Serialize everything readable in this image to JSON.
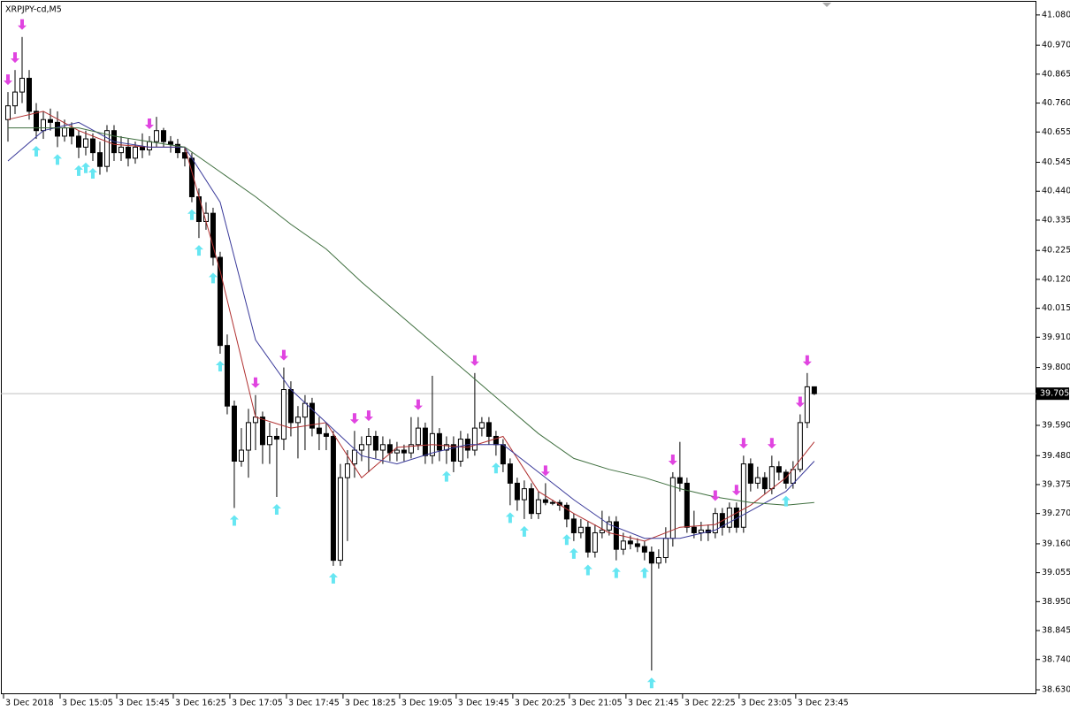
{
  "chart_data": {
    "type": "candlestick",
    "title": "XRPJPY-cd,M5",
    "open": [
      40.7,
      40.75,
      40.8,
      40.85,
      40.73,
      40.66,
      40.7,
      40.69,
      40.64,
      40.67,
      40.64,
      40.6,
      40.63,
      40.58,
      40.53,
      40.66,
      40.58,
      40.6,
      40.56,
      40.6,
      40.59,
      40.62,
      40.66,
      40.62,
      40.61,
      40.58,
      40.56,
      40.42,
      40.33,
      40.36,
      40.2,
      39.88,
      39.66,
      39.46,
      39.5,
      39.6,
      39.62,
      39.52,
      39.55,
      39.54,
      39.72,
      39.6,
      39.62,
      39.67,
      39.58,
      39.56,
      39.55,
      39.1,
      39.4,
      39.45,
      39.5,
      39.52,
      39.55,
      39.5,
      39.52,
      39.49,
      39.5,
      39.49,
      39.52,
      39.58,
      39.48,
      39.56,
      39.5,
      39.52,
      39.46,
      39.54,
      39.5,
      39.58,
      39.6,
      39.55,
      39.52,
      39.45,
      39.38,
      39.32,
      39.36,
      39.27,
      39.32,
      39.31,
      39.31,
      39.3,
      39.25,
      39.2,
      39.22,
      39.13,
      39.2,
      39.21,
      39.24,
      39.14,
      39.17,
      39.16,
      39.15,
      39.13,
      39.09,
      39.11,
      39.18,
      39.4,
      39.38,
      39.22,
      39.2,
      39.21,
      39.2,
      39.27,
      39.22,
      39.29,
      39.22,
      39.45,
      39.38,
      39.4,
      39.36,
      39.44,
      39.42,
      39.38,
      39.43,
      39.6,
      39.73
    ],
    "high": [
      40.8,
      40.88,
      41.0,
      40.88,
      40.76,
      40.73,
      40.74,
      40.73,
      40.7,
      40.69,
      40.66,
      40.66,
      40.65,
      40.62,
      40.68,
      40.68,
      40.64,
      40.63,
      40.62,
      40.65,
      40.64,
      40.71,
      40.67,
      40.64,
      40.63,
      40.6,
      40.58,
      40.45,
      40.4,
      40.38,
      40.22,
      39.92,
      39.68,
      39.58,
      39.65,
      39.7,
      39.64,
      39.6,
      39.58,
      39.8,
      39.75,
      39.66,
      39.7,
      39.69,
      39.62,
      39.6,
      39.57,
      39.45,
      39.5,
      39.57,
      39.55,
      39.58,
      39.57,
      39.55,
      39.54,
      39.53,
      39.52,
      39.62,
      39.62,
      39.6,
      39.77,
      39.58,
      39.55,
      39.55,
      39.57,
      39.56,
      39.78,
      39.62,
      39.62,
      39.57,
      39.54,
      39.47,
      39.4,
      39.39,
      39.38,
      39.35,
      39.38,
      39.32,
      39.32,
      39.31,
      39.27,
      39.25,
      39.24,
      39.23,
      39.28,
      39.26,
      39.26,
      39.2,
      39.19,
      39.18,
      39.17,
      39.15,
      39.14,
      39.22,
      39.42,
      39.53,
      39.4,
      39.28,
      39.24,
      39.23,
      39.29,
      39.29,
      39.31,
      39.31,
      39.48,
      39.47,
      39.44,
      39.42,
      39.48,
      39.46,
      39.43,
      39.46,
      39.63,
      39.78,
      39.73
    ],
    "low": [
      40.62,
      40.72,
      40.76,
      40.7,
      40.63,
      40.63,
      40.66,
      40.6,
      40.62,
      40.61,
      40.56,
      40.57,
      40.55,
      40.5,
      40.51,
      40.55,
      40.55,
      40.53,
      40.54,
      40.56,
      40.57,
      40.6,
      40.6,
      40.58,
      40.56,
      40.53,
      40.4,
      40.27,
      40.3,
      40.17,
      39.85,
      39.63,
      39.29,
      39.44,
      39.4,
      39.5,
      39.45,
      39.45,
      39.33,
      39.5,
      39.55,
      39.47,
      39.5,
      39.55,
      39.5,
      39.5,
      39.08,
      39.08,
      39.17,
      39.4,
      39.46,
      39.42,
      39.47,
      39.45,
      39.46,
      39.46,
      39.46,
      39.47,
      39.5,
      39.45,
      39.45,
      39.46,
      39.45,
      39.42,
      39.44,
      39.47,
      39.48,
      39.55,
      39.52,
      39.48,
      39.42,
      39.3,
      39.28,
      39.25,
      39.25,
      39.25,
      39.3,
      39.3,
      39.28,
      39.22,
      39.17,
      39.18,
      39.11,
      39.11,
      39.18,
      39.19,
      39.1,
      39.12,
      39.14,
      39.13,
      39.1,
      38.7,
      39.07,
      39.09,
      39.15,
      39.35,
      39.2,
      39.18,
      39.17,
      39.17,
      39.18,
      39.19,
      39.2,
      39.2,
      39.2,
      39.35,
      39.36,
      39.34,
      39.34,
      39.39,
      39.36,
      39.36,
      39.42,
      39.58,
      39.7
    ],
    "close": [
      40.75,
      40.8,
      40.85,
      40.73,
      40.66,
      40.7,
      40.69,
      40.64,
      40.67,
      40.64,
      40.6,
      40.63,
      40.58,
      40.53,
      40.66,
      40.58,
      40.6,
      40.56,
      40.6,
      40.59,
      40.62,
      40.66,
      40.62,
      40.61,
      40.58,
      40.56,
      40.42,
      40.33,
      40.36,
      40.2,
      39.88,
      39.66,
      39.46,
      39.5,
      39.6,
      39.62,
      39.52,
      39.55,
      39.54,
      39.72,
      39.6,
      39.62,
      39.67,
      39.58,
      39.56,
      39.55,
      39.1,
      39.4,
      39.45,
      39.5,
      39.52,
      39.55,
      39.5,
      39.52,
      39.49,
      39.5,
      39.49,
      39.52,
      39.58,
      39.48,
      39.56,
      39.5,
      39.52,
      39.46,
      39.54,
      39.5,
      39.58,
      39.6,
      39.55,
      39.52,
      39.45,
      39.38,
      39.32,
      39.36,
      39.27,
      39.32,
      39.31,
      39.31,
      39.3,
      39.25,
      39.2,
      39.22,
      39.13,
      39.2,
      39.21,
      39.24,
      39.14,
      39.17,
      39.16,
      39.15,
      39.13,
      39.09,
      39.11,
      39.18,
      39.4,
      39.38,
      39.22,
      39.2,
      39.21,
      39.2,
      39.27,
      39.22,
      39.29,
      39.22,
      39.45,
      39.38,
      39.4,
      39.36,
      39.44,
      39.42,
      39.38,
      39.43,
      39.6,
      39.73,
      39.705
    ],
    "ma_x": [
      0,
      5,
      10,
      15,
      20,
      25,
      30,
      35,
      40,
      45,
      50,
      55,
      60,
      65,
      70,
      75,
      80,
      85,
      90,
      95,
      100,
      105,
      110,
      114
    ],
    "lines": [
      {
        "color": "#b03030",
        "values": [
          40.7,
          40.73,
          40.66,
          40.61,
          40.6,
          40.6,
          40.15,
          39.62,
          39.58,
          39.6,
          39.4,
          39.51,
          39.52,
          39.51,
          39.55,
          39.35,
          39.27,
          39.2,
          39.17,
          39.22,
          39.23,
          39.3,
          39.4,
          39.53
        ]
      },
      {
        "color": "#3a3a9a",
        "values": [
          40.55,
          40.66,
          40.69,
          40.62,
          40.6,
          40.6,
          40.4,
          39.9,
          39.72,
          39.6,
          39.48,
          39.45,
          39.49,
          39.52,
          39.52,
          39.42,
          39.32,
          39.23,
          39.18,
          39.18,
          39.21,
          39.28,
          39.35,
          39.46
        ]
      },
      {
        "color": "#3f6f3f",
        "values": [
          40.67,
          40.67,
          40.67,
          40.64,
          40.62,
          40.6,
          40.51,
          40.42,
          40.32,
          40.23,
          40.11,
          40.0,
          39.89,
          39.78,
          39.67,
          39.56,
          39.47,
          39.43,
          39.4,
          39.36,
          39.33,
          39.31,
          39.3,
          39.31
        ]
      }
    ],
    "buy_signals": [
      4,
      7,
      10,
      11,
      12,
      26,
      27,
      29,
      30,
      32,
      38,
      46,
      62,
      69,
      71,
      73,
      79,
      80,
      82,
      86,
      90,
      91,
      110
    ],
    "sell_signals": [
      0,
      1,
      2,
      20,
      35,
      39,
      49,
      51,
      58,
      66,
      76,
      94,
      100,
      103,
      104,
      108,
      112,
      113
    ],
    "buy_color": "#66e6f2",
    "sell_color": "#e044e0",
    "last_price": 39.705,
    "xlim": [
      -1,
      145.4
    ],
    "xticks": [
      {
        "value": 0,
        "label": "3 Dec 2018"
      },
      {
        "value": 8,
        "label": "3 Dec 15:05"
      },
      {
        "value": 16,
        "label": "3 Dec 15:45"
      },
      {
        "value": 24,
        "label": "3 Dec 16:25"
      },
      {
        "value": 32,
        "label": "3 Dec 17:05"
      },
      {
        "value": 40,
        "label": "3 Dec 17:45"
      },
      {
        "value": 48,
        "label": "3 Dec 18:25"
      },
      {
        "value": 56,
        "label": "3 Dec 19:05"
      },
      {
        "value": 64,
        "label": "3 Dec 19:45"
      },
      {
        "value": 72,
        "label": "3 Dec 20:25"
      },
      {
        "value": 80,
        "label": "3 Dec 21:05"
      },
      {
        "value": 88,
        "label": "3 Dec 21:45"
      },
      {
        "value": 96,
        "label": "3 Dec 22:25"
      },
      {
        "value": 104,
        "label": "3 Dec 23:05"
      },
      {
        "value": 112,
        "label": "3 Dec 23:45"
      }
    ],
    "ylim": [
      38.614,
      41.131
    ],
    "yticks": [
      {
        "value": 41.08,
        "label": "41.080"
      },
      {
        "value": 40.97,
        "label": "40.970"
      },
      40.865,
      {
        "value": 40.76,
        "label": "40.760"
      },
      40.655,
      40.545,
      {
        "value": 40.44,
        "label": "40.440"
      },
      40.335,
      40.225,
      {
        "value": 40.12,
        "label": "40.120"
      },
      40.015,
      {
        "value": 39.91,
        "label": "39.910"
      },
      {
        "value": 39.8,
        "label": "39.800"
      },
      {
        "value": 39.59,
        "label": "39.590"
      },
      {
        "value": 39.48,
        "label": "39.480"
      },
      39.375,
      {
        "value": 39.27,
        "label": "39.270"
      },
      {
        "value": 39.16,
        "label": "39.160"
      },
      39.055,
      {
        "value": 38.95,
        "label": "38.950"
      },
      38.845,
      {
        "value": 38.74,
        "label": "38.740"
      },
      {
        "value": 38.63,
        "label": "38.630"
      }
    ]
  }
}
